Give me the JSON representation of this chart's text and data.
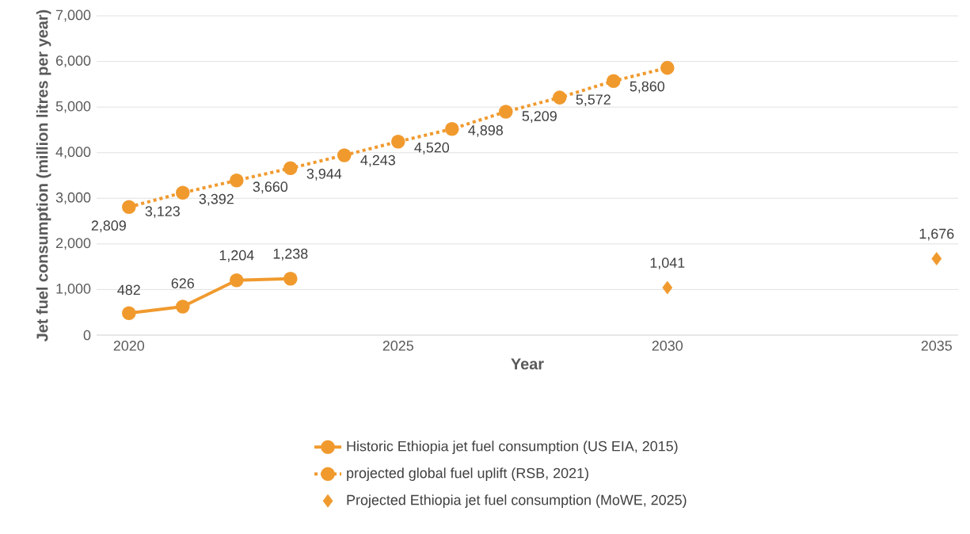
{
  "chart_data": {
    "type": "line",
    "xlabel": "Year",
    "ylabel": "Jet fuel consumption (million litres per year)",
    "xlim": [
      2019.4,
      2035.4
    ],
    "xticks": [
      2020,
      2025,
      2030,
      2035
    ],
    "ylim": [
      0,
      7000
    ],
    "yticks": [
      {
        "value": 0,
        "label": "0"
      },
      {
        "value": 1000,
        "label": "1,000"
      },
      {
        "value": 2000,
        "label": "2,000"
      },
      {
        "value": 3000,
        "label": "3,000"
      },
      {
        "value": 4000,
        "label": "4,000"
      },
      {
        "value": 5000,
        "label": "5,000"
      },
      {
        "value": 6000,
        "label": "6,000"
      },
      {
        "value": 7000,
        "label": "7,000"
      }
    ],
    "grid": "y",
    "legend": "bottom",
    "series": [
      {
        "name": "Historic Ethiopia jet fuel consumption (US EIA, 2015)",
        "color": "#f09a2e",
        "marker": "circle",
        "line_style": "solid",
        "x": [
          2020,
          2021,
          2022,
          2023
        ],
        "values": [
          482,
          626,
          1204,
          1238
        ],
        "value_labels": [
          "482",
          "626",
          "1,204",
          "1,238"
        ]
      },
      {
        "name": "projected global fuel uplift (RSB, 2021)",
        "color": "#f09a2e",
        "marker": "circle",
        "line_style": "dotted",
        "x": [
          2020,
          2021,
          2022,
          2023,
          2024,
          2025,
          2026,
          2027,
          2028,
          2029,
          2030
        ],
        "values": [
          2809,
          3123,
          3392,
          3660,
          3944,
          4243,
          4520,
          4898,
          5209,
          5572,
          5860
        ],
        "value_labels": [
          "2,809",
          "3,123",
          "3,392",
          "3,660",
          "3,944",
          "4,243",
          "4,520",
          "4,898",
          "5,209",
          "5,572",
          "5,860"
        ]
      },
      {
        "name": "Projected Ethiopia jet fuel consumption (MoWE, 2025)",
        "type": "scatter",
        "color": "#f09a2e",
        "marker": "diamond",
        "x": [
          2030,
          2035
        ],
        "values": [
          1041,
          1676
        ],
        "value_labels": [
          "1,041",
          "1,676"
        ]
      }
    ]
  }
}
